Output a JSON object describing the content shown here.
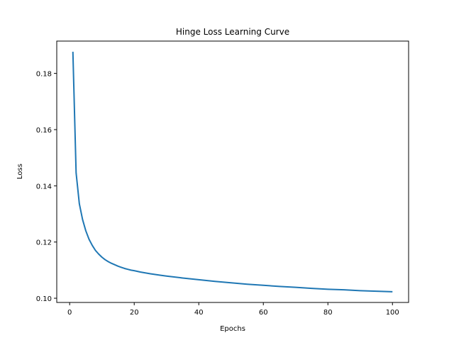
{
  "chart_data": {
    "type": "line",
    "title": "Hinge Loss Learning Curve",
    "xlabel": "Epochs",
    "ylabel": "Loss",
    "xlim": [
      -4,
      105
    ],
    "ylim": [
      0.0985,
      0.1915
    ],
    "xticks": [
      0,
      20,
      40,
      60,
      80,
      100
    ],
    "yticks": [
      0.1,
      0.12,
      0.14,
      0.16,
      0.18
    ],
    "ytick_labels": [
      "0.10",
      "0.12",
      "0.14",
      "0.16",
      "0.18"
    ],
    "grid": false,
    "series": [
      {
        "color": "#1f77b4",
        "x": [
          1,
          2,
          3,
          4,
          5,
          6,
          7,
          8,
          9,
          10,
          11,
          12,
          13,
          14,
          15,
          16,
          17,
          18,
          19,
          20,
          22,
          25,
          28,
          30,
          35,
          40,
          45,
          50,
          55,
          60,
          65,
          70,
          75,
          80,
          85,
          90,
          95,
          100
        ],
        "y": [
          0.1877,
          0.1446,
          0.1336,
          0.128,
          0.124,
          0.121,
          0.1188,
          0.117,
          0.1157,
          0.1146,
          0.1137,
          0.113,
          0.1124,
          0.1119,
          0.1114,
          0.111,
          0.1106,
          0.1103,
          0.11,
          0.1098,
          0.1093,
          0.1087,
          0.1082,
          0.1079,
          0.1072,
          0.1066,
          0.106,
          0.1055,
          0.105,
          0.1046,
          0.1042,
          0.1039,
          0.1035,
          0.1032,
          0.103,
          0.1027,
          0.1025,
          0.1023
        ]
      }
    ]
  }
}
